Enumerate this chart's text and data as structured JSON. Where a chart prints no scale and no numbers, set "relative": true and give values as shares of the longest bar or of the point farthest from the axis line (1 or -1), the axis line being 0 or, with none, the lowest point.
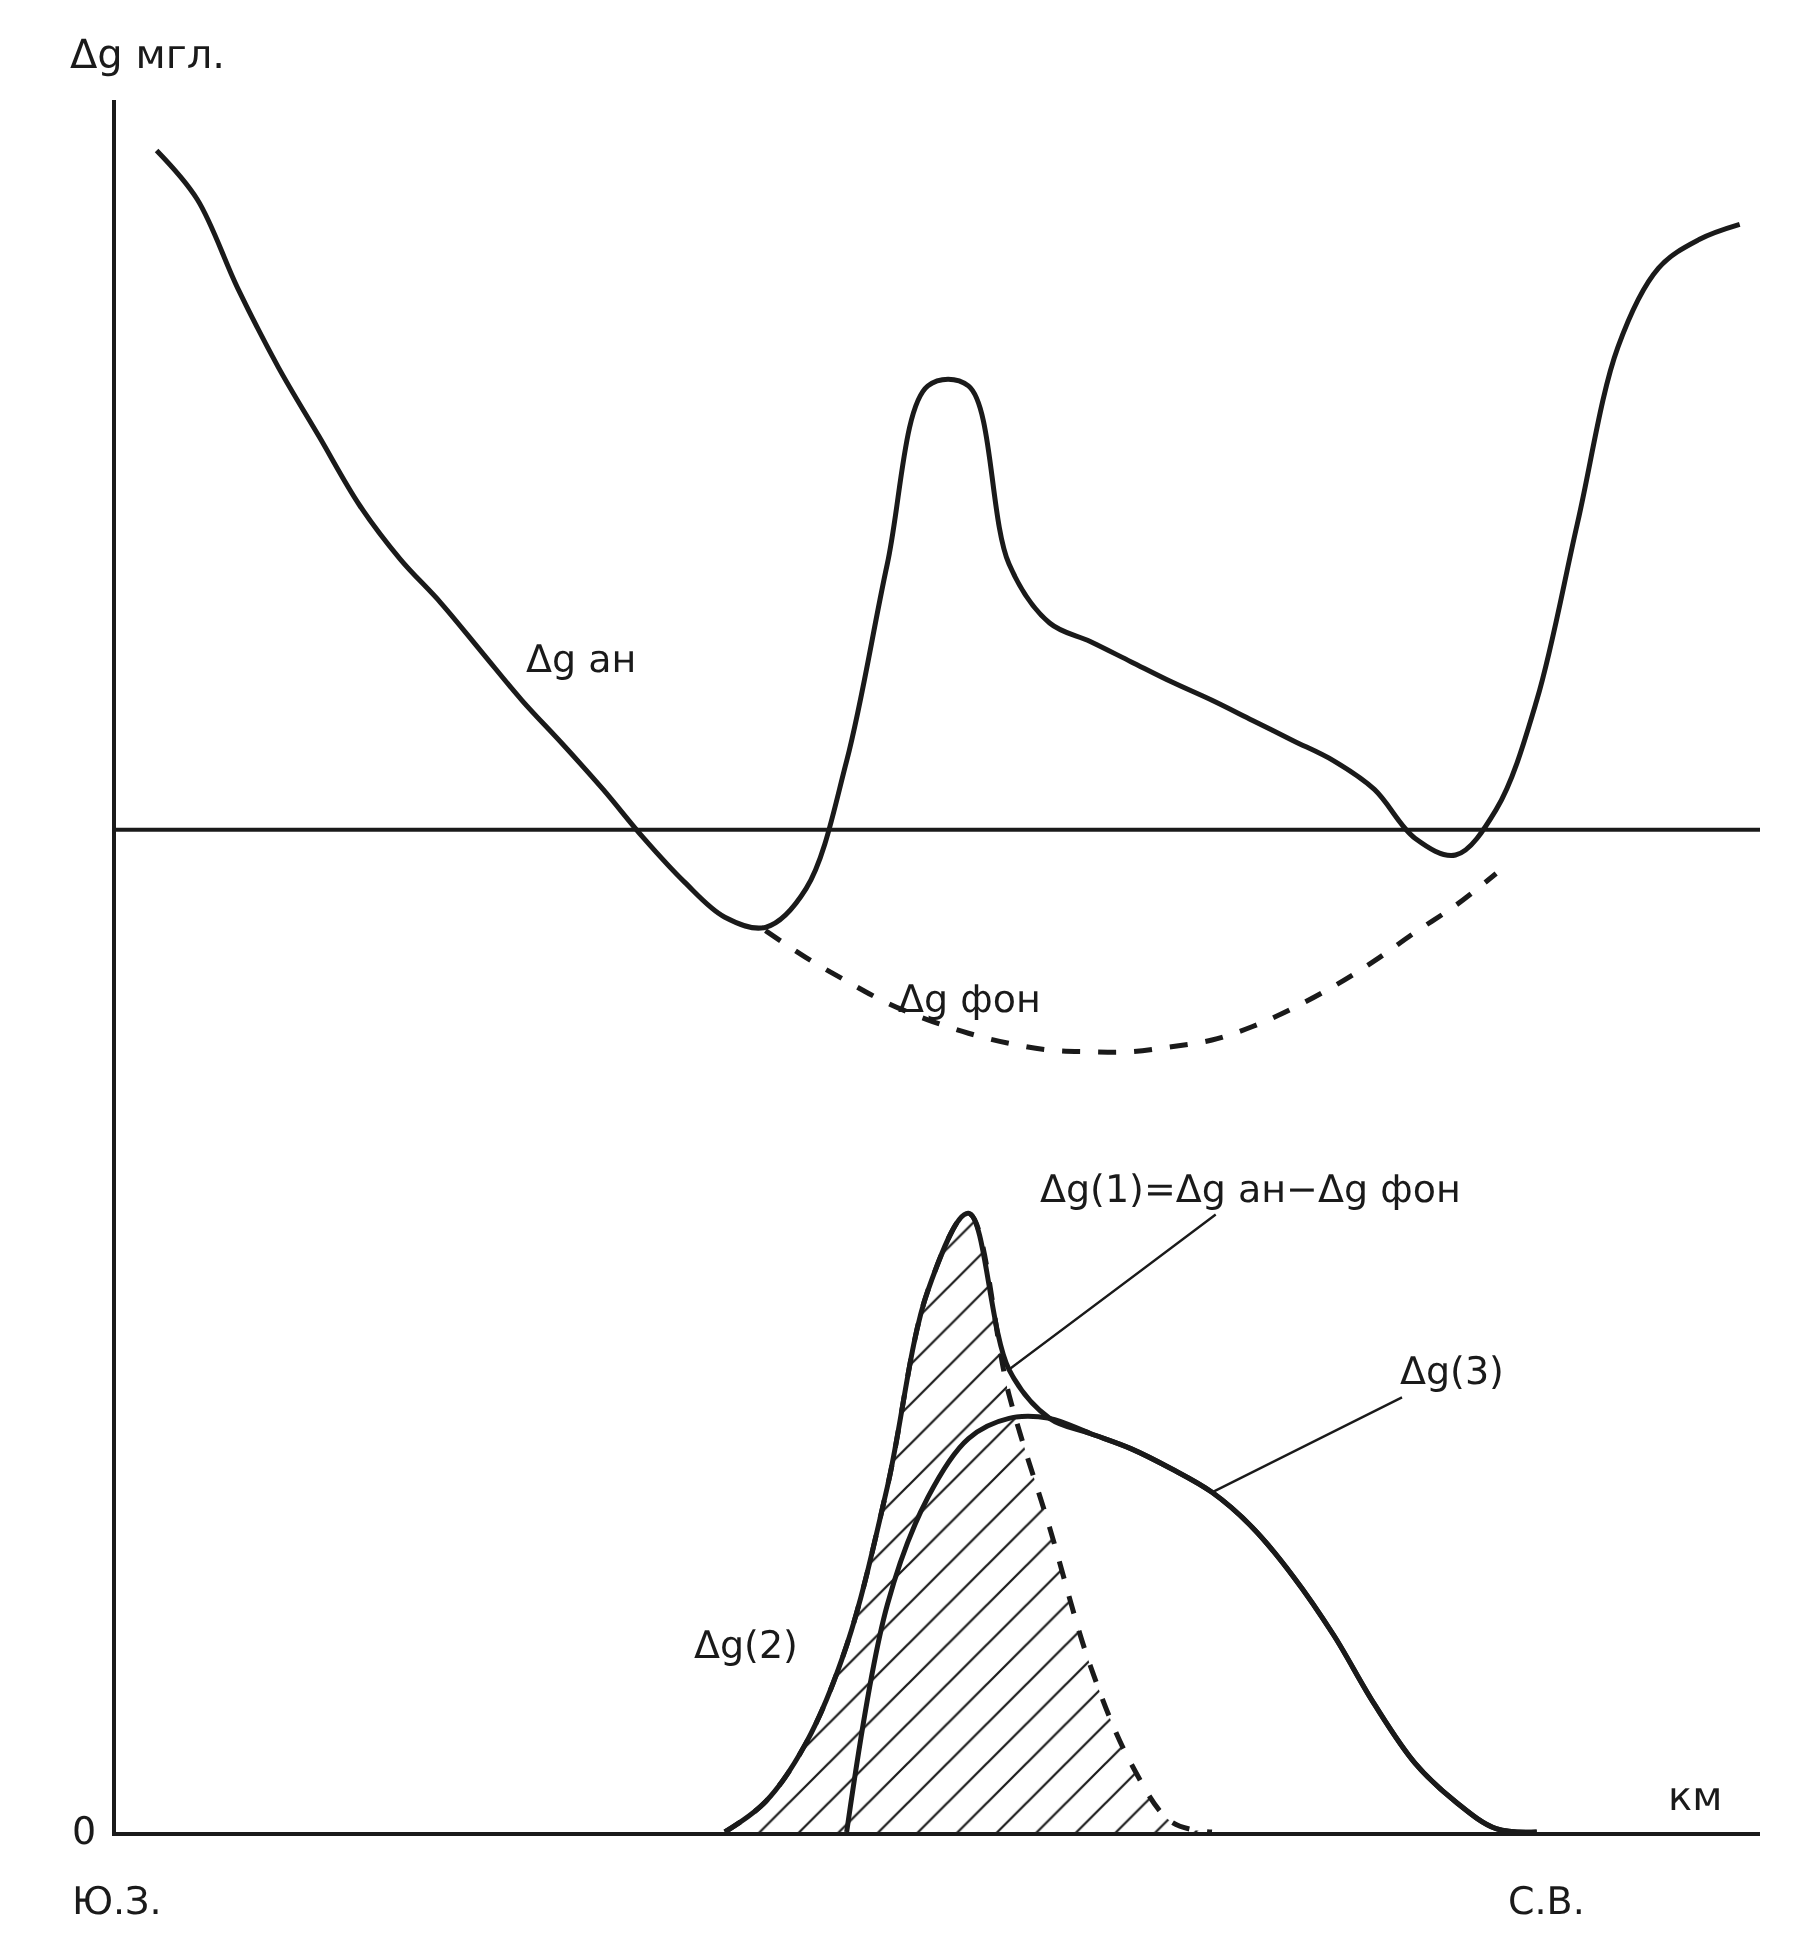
{
  "chart_data": {
    "type": "line",
    "relative": true,
    "xlabel": "км",
    "ylabel": "Δg мгл.",
    "categories": [
      null,
      null,
      null,
      null,
      null,
      null,
      null,
      null,
      null,
      null,
      null,
      null,
      null,
      null,
      null,
      null,
      null,
      null,
      null,
      null,
      null,
      null,
      null,
      null,
      null,
      null,
      null,
      null,
      null,
      null,
      null,
      null,
      null,
      null,
      null,
      null,
      null,
      null,
      null,
      null,
      null
    ],
    "series": [
      {
        "name": "Δg ан",
        "color": "#1a1a1a",
        "values": [
          null,
          1,
          0.971,
          0.918,
          0.871,
          0.83,
          0.789,
          0.757,
          0.731,
          0.702,
          0.673,
          0.647,
          0.62,
          0.591,
          0.565,
          0.544,
          0.538,
          0.561,
          0.637,
          0.754,
          0.86,
          0.86,
          0.754,
          0.719,
          0.708,
          0.696,
          0.684,
          0.673,
          0.661,
          0.649,
          0.637,
          0.62,
          0.591,
          0.581,
          0.608,
          0.673,
          0.778,
          0.883,
          0.93,
          0.947,
          0.956
        ]
      },
      {
        "name": "Δg фон",
        "color": "#1a1a1a",
        "line_style": "dashed",
        "values": [
          null,
          null,
          null,
          null,
          null,
          null,
          null,
          null,
          null,
          null,
          null,
          null,
          null,
          null,
          null,
          null,
          0.536,
          0.52,
          0.506,
          0.493,
          0.483,
          0.475,
          0.469,
          0.465,
          0.464,
          0.464,
          0.467,
          0.471,
          0.479,
          0.49,
          0.503,
          0.518,
          0.535,
          0.551,
          0.57,
          null,
          null,
          null,
          null,
          null,
          null
        ]
      },
      {
        "name": "Δg(1)=Δg ан−Δg фон",
        "color": "#1a1a1a",
        "values": [
          null,
          null,
          null,
          null,
          null,
          null,
          null,
          null,
          null,
          null,
          null,
          null,
          null,
          null,
          null,
          0,
          0.018,
          0.053,
          0.111,
          0.205,
          0.322,
          0.368,
          0.275,
          0.246,
          0.237,
          0.228,
          0.216,
          0.202,
          0.181,
          0.152,
          0.117,
          0.076,
          0.041,
          0.018,
          0.002,
          0,
          null,
          null,
          null,
          null,
          null
        ]
      },
      {
        "name": "Δg(2)",
        "type": "area",
        "color": "#1a1a1a",
        "line_style": "dashed",
        "values": [
          null,
          null,
          null,
          null,
          null,
          null,
          null,
          null,
          null,
          null,
          null,
          null,
          null,
          null,
          null,
          0,
          0.018,
          0.053,
          0.111,
          0.205,
          0.322,
          0.368,
          0.26,
          0.181,
          0.099,
          0.041,
          0.006,
          0,
          null,
          null,
          null,
          null,
          null,
          null,
          null,
          null,
          null,
          null,
          null,
          null,
          null
        ]
      },
      {
        "name": "Δg(3)",
        "color": "#1a1a1a",
        "values": [
          null,
          null,
          null,
          null,
          null,
          null,
          null,
          null,
          null,
          null,
          null,
          null,
          null,
          null,
          null,
          null,
          null,
          null,
          0,
          0.135,
          0.199,
          0.234,
          0.246,
          0.246,
          0.237,
          0.228,
          0.216,
          0.202,
          0.181,
          0.152,
          0.117,
          0.076,
          0.041,
          0.018,
          0.002,
          0,
          null,
          null,
          null,
          null,
          null
        ]
      }
    ],
    "ref_lines": [
      {
        "axis": "y",
        "value": 0.596,
        "color": "#1a1a1a"
      }
    ],
    "annotations": [
      "0",
      "Ю.З.",
      "С.В."
    ]
  }
}
